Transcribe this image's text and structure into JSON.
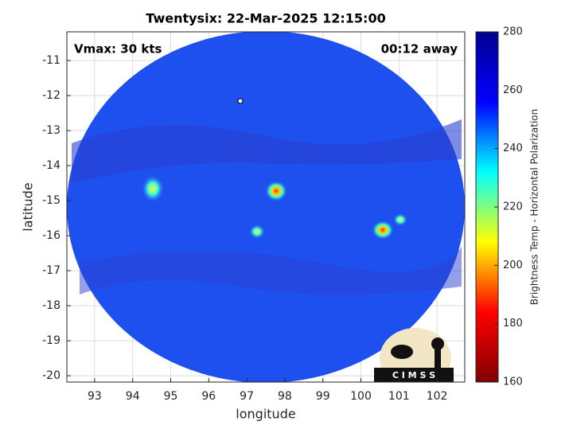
{
  "chart_data": {
    "type": "image",
    "title": "Twentysix: 22-Mar-2025 12:15:00",
    "annotations": [
      "Vmax: 30 kts",
      "00:12 away"
    ],
    "xlabel": "longitude",
    "ylabel": "latitude",
    "xlim": [
      92.27,
      102.73
    ],
    "xticks": [
      93,
      94,
      95,
      96,
      97,
      98,
      99,
      100,
      101,
      102
    ],
    "ylim": [
      -20.18,
      -10.18
    ],
    "yticks": [
      -11,
      -12,
      -13,
      -14,
      -15,
      -16,
      -17,
      -18,
      -19,
      -20
    ],
    "grid": true,
    "colorbar": {
      "label": "Brightness Temp - Horizontal Polarization",
      "lim": [
        160,
        280
      ],
      "ticks": [
        160,
        180,
        200,
        220,
        240,
        260,
        280
      ],
      "colors": [
        "#800000",
        "#ff0000",
        "#ffff00",
        "#00ffff",
        "#0000ff",
        "#00008f"
      ]
    },
    "logo": "C I M S S"
  }
}
